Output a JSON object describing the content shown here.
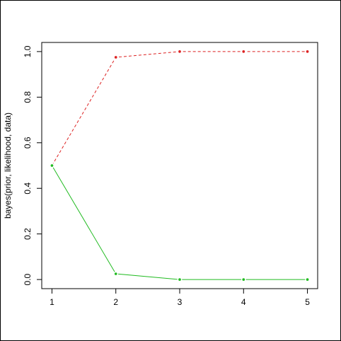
{
  "chart_data": {
    "type": "line",
    "ylabel": "bayes(prior, likelihood, data)",
    "x": [
      1,
      2,
      3,
      4,
      5
    ],
    "series": [
      {
        "color": "#dd2222",
        "linestyle": "dashed",
        "values": [
          0.5,
          0.975,
          1,
          1,
          1
        ]
      },
      {
        "color": "#22bb22",
        "linestyle": "solid",
        "values": [
          0.5,
          0.025,
          0,
          0,
          0
        ]
      }
    ],
    "xlim": [
      0.84,
      5.16
    ],
    "xticks": [
      1,
      2,
      3,
      4,
      5
    ],
    "ylim": [
      -0.04,
      1.04
    ],
    "yticks": [
      {
        "value": 0,
        "label": "0.0"
      },
      0.2,
      0.4,
      0.6,
      0.8,
      {
        "value": 1,
        "label": "1.0"
      }
    ]
  }
}
